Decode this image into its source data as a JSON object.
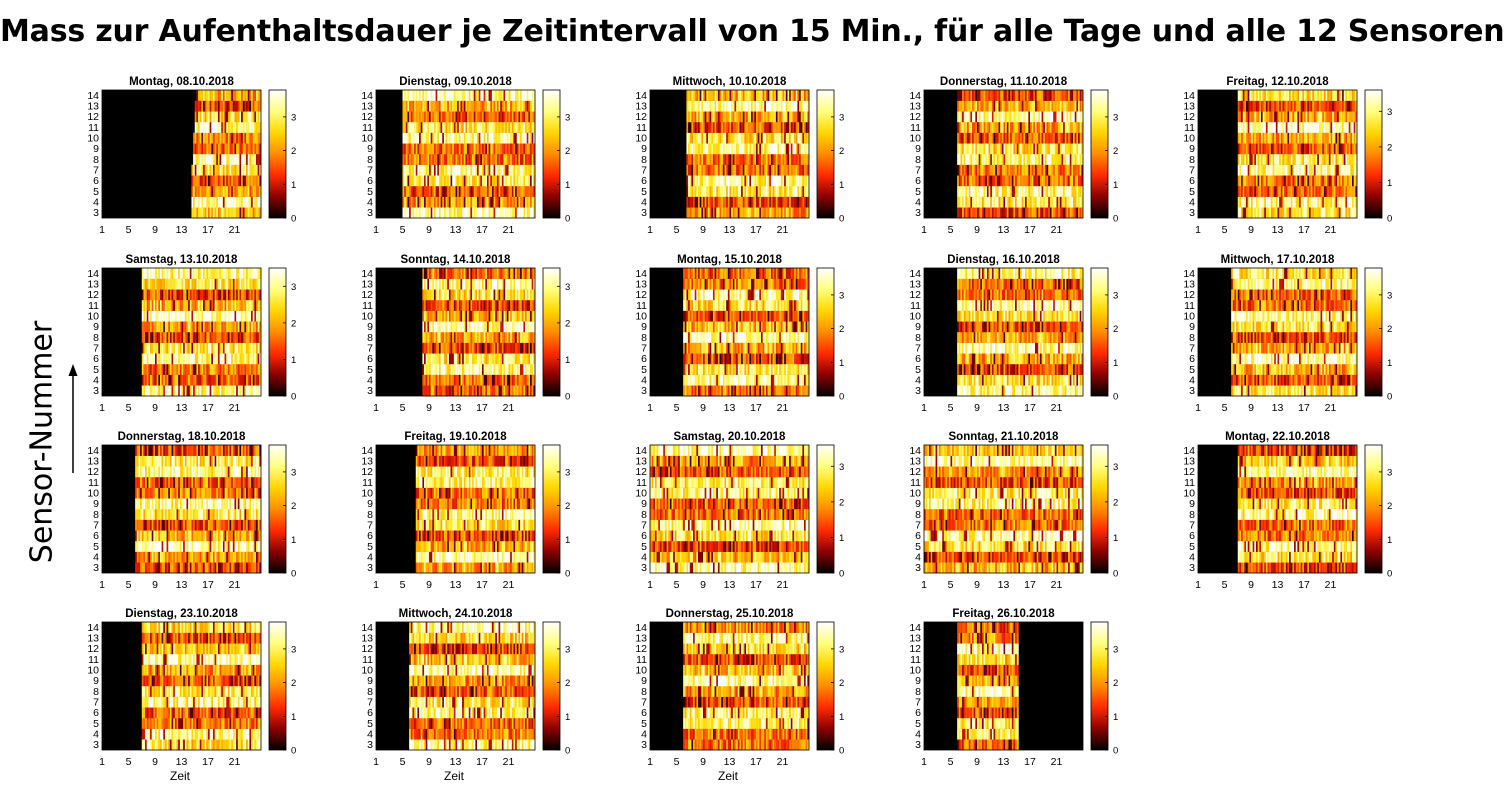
{
  "title": "Mass zur Aufenthaltsdauer je Zeitintervall von 15 Min., für alle Tage und alle 12 Sensoren",
  "y_axis_title": "Sensor-Nummer",
  "colormap": [
    "#000000",
    "#8b0000",
    "#ff2a00",
    "#ff8c00",
    "#ffd700",
    "#ffff80",
    "#ffffff"
  ],
  "chart_data": {
    "type": "heatmap",
    "xlabel": "Zeit",
    "ylabel": "Sensor-Nummer",
    "x_ticks": [
      "1",
      "5",
      "9",
      "13",
      "17",
      "21"
    ],
    "x_tick_values": [
      1,
      5,
      9,
      13,
      17,
      21
    ],
    "y_ticks": [
      "3",
      "4",
      "5",
      "6",
      "7",
      "8",
      "9",
      "10",
      "11",
      "12",
      "13",
      "14"
    ],
    "x_range": [
      1,
      25
    ],
    "sensors": [
      3,
      4,
      5,
      6,
      7,
      8,
      9,
      10,
      11,
      12,
      13,
      14
    ],
    "interval_minutes": 15,
    "colorbar_ticks": [
      "0",
      "1",
      "2",
      "3"
    ],
    "colorbar_range": [
      0,
      3.8
    ],
    "panels": [
      {
        "title": "Montag, 08.10.2018",
        "xlabel": "",
        "cbar_max": 3.8,
        "activity_start": [
          14.5,
          14.5,
          14.5,
          14.5,
          14.6,
          14.7,
          14.7,
          14.8,
          14.9,
          15.0,
          15.1,
          15.2
        ],
        "activity_end": [
          25,
          25,
          25,
          25,
          25,
          25,
          25,
          25,
          25,
          25,
          25,
          25
        ]
      },
      {
        "title": "Dienstag, 09.10.2018",
        "xlabel": "",
        "cbar_max": 3.8,
        "activity_start": [
          5,
          5,
          5,
          5,
          5,
          5,
          5,
          5,
          5,
          5,
          5,
          5
        ],
        "activity_end": [
          25,
          25,
          25,
          25,
          25,
          25,
          25,
          25,
          25,
          25,
          25,
          25
        ]
      },
      {
        "title": "Mittwoch, 10.10.2018",
        "xlabel": "",
        "cbar_max": 3.8,
        "activity_start": [
          6.5,
          6.5,
          6.5,
          6.5,
          6.5,
          6.5,
          6.5,
          6.5,
          6.5,
          6.5,
          6.5,
          6.5
        ],
        "activity_end": [
          25,
          25,
          25,
          25,
          25,
          25,
          25,
          25,
          25,
          25,
          25,
          25
        ]
      },
      {
        "title": "Donnerstag, 11.10.2018",
        "xlabel": "",
        "cbar_max": 3.8,
        "activity_start": [
          6,
          6,
          6,
          6,
          6,
          6,
          6,
          6,
          6,
          6,
          6,
          6
        ],
        "activity_end": [
          25,
          25,
          25,
          25,
          25,
          25,
          25,
          25,
          25,
          25,
          25,
          25
        ]
      },
      {
        "title": "Freitag, 12.10.2018",
        "xlabel": "",
        "cbar_max": 3.6,
        "activity_start": [
          7,
          7,
          7,
          7,
          7,
          7,
          7,
          7,
          7,
          7,
          7,
          7
        ],
        "activity_end": [
          25,
          25,
          25,
          25,
          25,
          25,
          25,
          25,
          25,
          25,
          25,
          25
        ]
      },
      {
        "title": "Samstag, 13.10.2018",
        "xlabel": "",
        "cbar_max": 3.5,
        "activity_start": [
          7,
          7,
          7,
          7,
          7,
          7,
          7,
          7,
          7,
          7,
          7,
          7
        ],
        "activity_end": [
          25,
          25,
          25,
          25,
          25,
          25,
          25,
          25,
          25,
          25,
          25,
          25
        ]
      },
      {
        "title": "Sonntag, 14.10.2018",
        "xlabel": "",
        "cbar_max": 3.5,
        "activity_start": [
          8,
          8,
          8,
          8,
          8,
          8,
          8,
          8,
          8,
          8,
          8,
          8
        ],
        "activity_end": [
          25,
          25,
          25,
          25,
          25,
          25,
          25,
          25,
          25,
          25,
          25,
          25
        ]
      },
      {
        "title": "Montag, 15.10.2018",
        "xlabel": "",
        "cbar_max": 3.8,
        "activity_start": [
          6,
          6,
          6,
          6,
          6,
          6,
          6,
          6,
          6,
          6,
          6,
          6
        ],
        "activity_end": [
          25,
          25,
          25,
          25,
          25,
          25,
          25,
          25,
          25,
          25,
          25,
          25
        ]
      },
      {
        "title": "Dienstag, 16.10.2018",
        "xlabel": "",
        "cbar_max": 3.8,
        "activity_start": [
          6,
          6,
          6,
          6,
          6,
          6,
          6,
          6,
          6,
          6,
          6,
          6
        ],
        "activity_end": [
          25,
          25,
          25,
          25,
          25,
          25,
          25,
          25,
          25,
          25,
          25,
          25
        ]
      },
      {
        "title": "Mittwoch, 17.10.2018",
        "xlabel": "",
        "cbar_max": 3.8,
        "activity_start": [
          6,
          6,
          6,
          6,
          6,
          6,
          6,
          6,
          6,
          6,
          6,
          6
        ],
        "activity_end": [
          25,
          25,
          25,
          25,
          25,
          25,
          25,
          25,
          25,
          25,
          25,
          25
        ]
      },
      {
        "title": "Donnerstag, 18.10.2018",
        "xlabel": "",
        "cbar_max": 3.8,
        "activity_start": [
          6,
          6,
          6,
          6,
          6,
          6,
          6,
          6,
          6,
          6,
          6,
          6
        ],
        "activity_end": [
          25,
          25,
          25,
          25,
          25,
          25,
          25,
          25,
          25,
          25,
          25,
          25
        ]
      },
      {
        "title": "Freitag, 19.10.2018",
        "xlabel": "",
        "cbar_max": 3.8,
        "activity_start": [
          7,
          7,
          7,
          7,
          7,
          7,
          7,
          7,
          7,
          7,
          7,
          7
        ],
        "activity_end": [
          25,
          25,
          25,
          25,
          25,
          25,
          25,
          25,
          25,
          25,
          25,
          25
        ]
      },
      {
        "title": "Samstag, 20.10.2018",
        "xlabel": "",
        "cbar_max": 3.6,
        "activity_start": [
          1,
          1,
          1,
          1,
          1,
          1,
          1,
          1,
          1,
          1,
          1,
          1
        ],
        "activity_end": [
          25,
          25,
          25,
          25,
          25,
          25,
          25,
          25,
          25,
          25,
          25,
          25
        ]
      },
      {
        "title": "Sonntag, 21.10.2018",
        "xlabel": "",
        "cbar_max": 3.6,
        "activity_start": [
          1,
          1,
          1,
          1,
          1,
          1,
          1,
          1,
          1,
          1,
          1,
          1
        ],
        "activity_end": [
          25,
          25,
          25,
          25,
          25,
          25,
          25,
          25,
          25,
          25,
          25,
          25
        ]
      },
      {
        "title": "Montag, 22.10.2018",
        "xlabel": "",
        "cbar_max": 3.8,
        "activity_start": [
          7,
          7,
          7,
          7,
          7,
          7,
          7,
          7,
          7,
          7,
          7,
          7
        ],
        "activity_end": [
          25,
          25,
          25,
          25,
          25,
          25,
          25,
          25,
          25,
          25,
          25,
          25
        ]
      },
      {
        "title": "Dienstag, 23.10.2018",
        "xlabel": "Zeit",
        "cbar_max": 3.8,
        "activity_start": [
          7,
          7,
          7,
          7,
          7,
          7,
          7,
          7,
          7,
          7,
          7,
          7
        ],
        "activity_end": [
          25,
          25,
          25,
          25,
          25,
          25,
          25,
          25,
          25,
          25,
          25,
          25
        ]
      },
      {
        "title": "Mittwoch, 24.10.2018",
        "xlabel": "Zeit",
        "cbar_max": 3.8,
        "activity_start": [
          6,
          6,
          6,
          6,
          6,
          6,
          6,
          6,
          6,
          6,
          6,
          6
        ],
        "activity_end": [
          25,
          25,
          25,
          25,
          25,
          25,
          25,
          25,
          25,
          25,
          25,
          25
        ]
      },
      {
        "title": "Donnerstag, 25.10.2018",
        "xlabel": "Zeit",
        "cbar_max": 3.8,
        "activity_start": [
          6,
          6,
          6,
          6,
          6,
          6,
          6,
          6,
          6,
          6,
          6,
          6
        ],
        "activity_end": [
          25,
          25,
          25,
          25,
          25,
          25,
          25,
          25,
          25,
          25,
          25,
          25
        ]
      },
      {
        "title": "Freitag, 26.10.2018",
        "xlabel": "",
        "cbar_max": 3.8,
        "activity_start": [
          6,
          6,
          6,
          6,
          6,
          6,
          6,
          6,
          6,
          6,
          6,
          6
        ],
        "activity_end": [
          15.2,
          15.2,
          15.2,
          15.2,
          15.2,
          15.2,
          15.2,
          15.2,
          15.2,
          15.2,
          15.2,
          15.2
        ]
      }
    ]
  }
}
